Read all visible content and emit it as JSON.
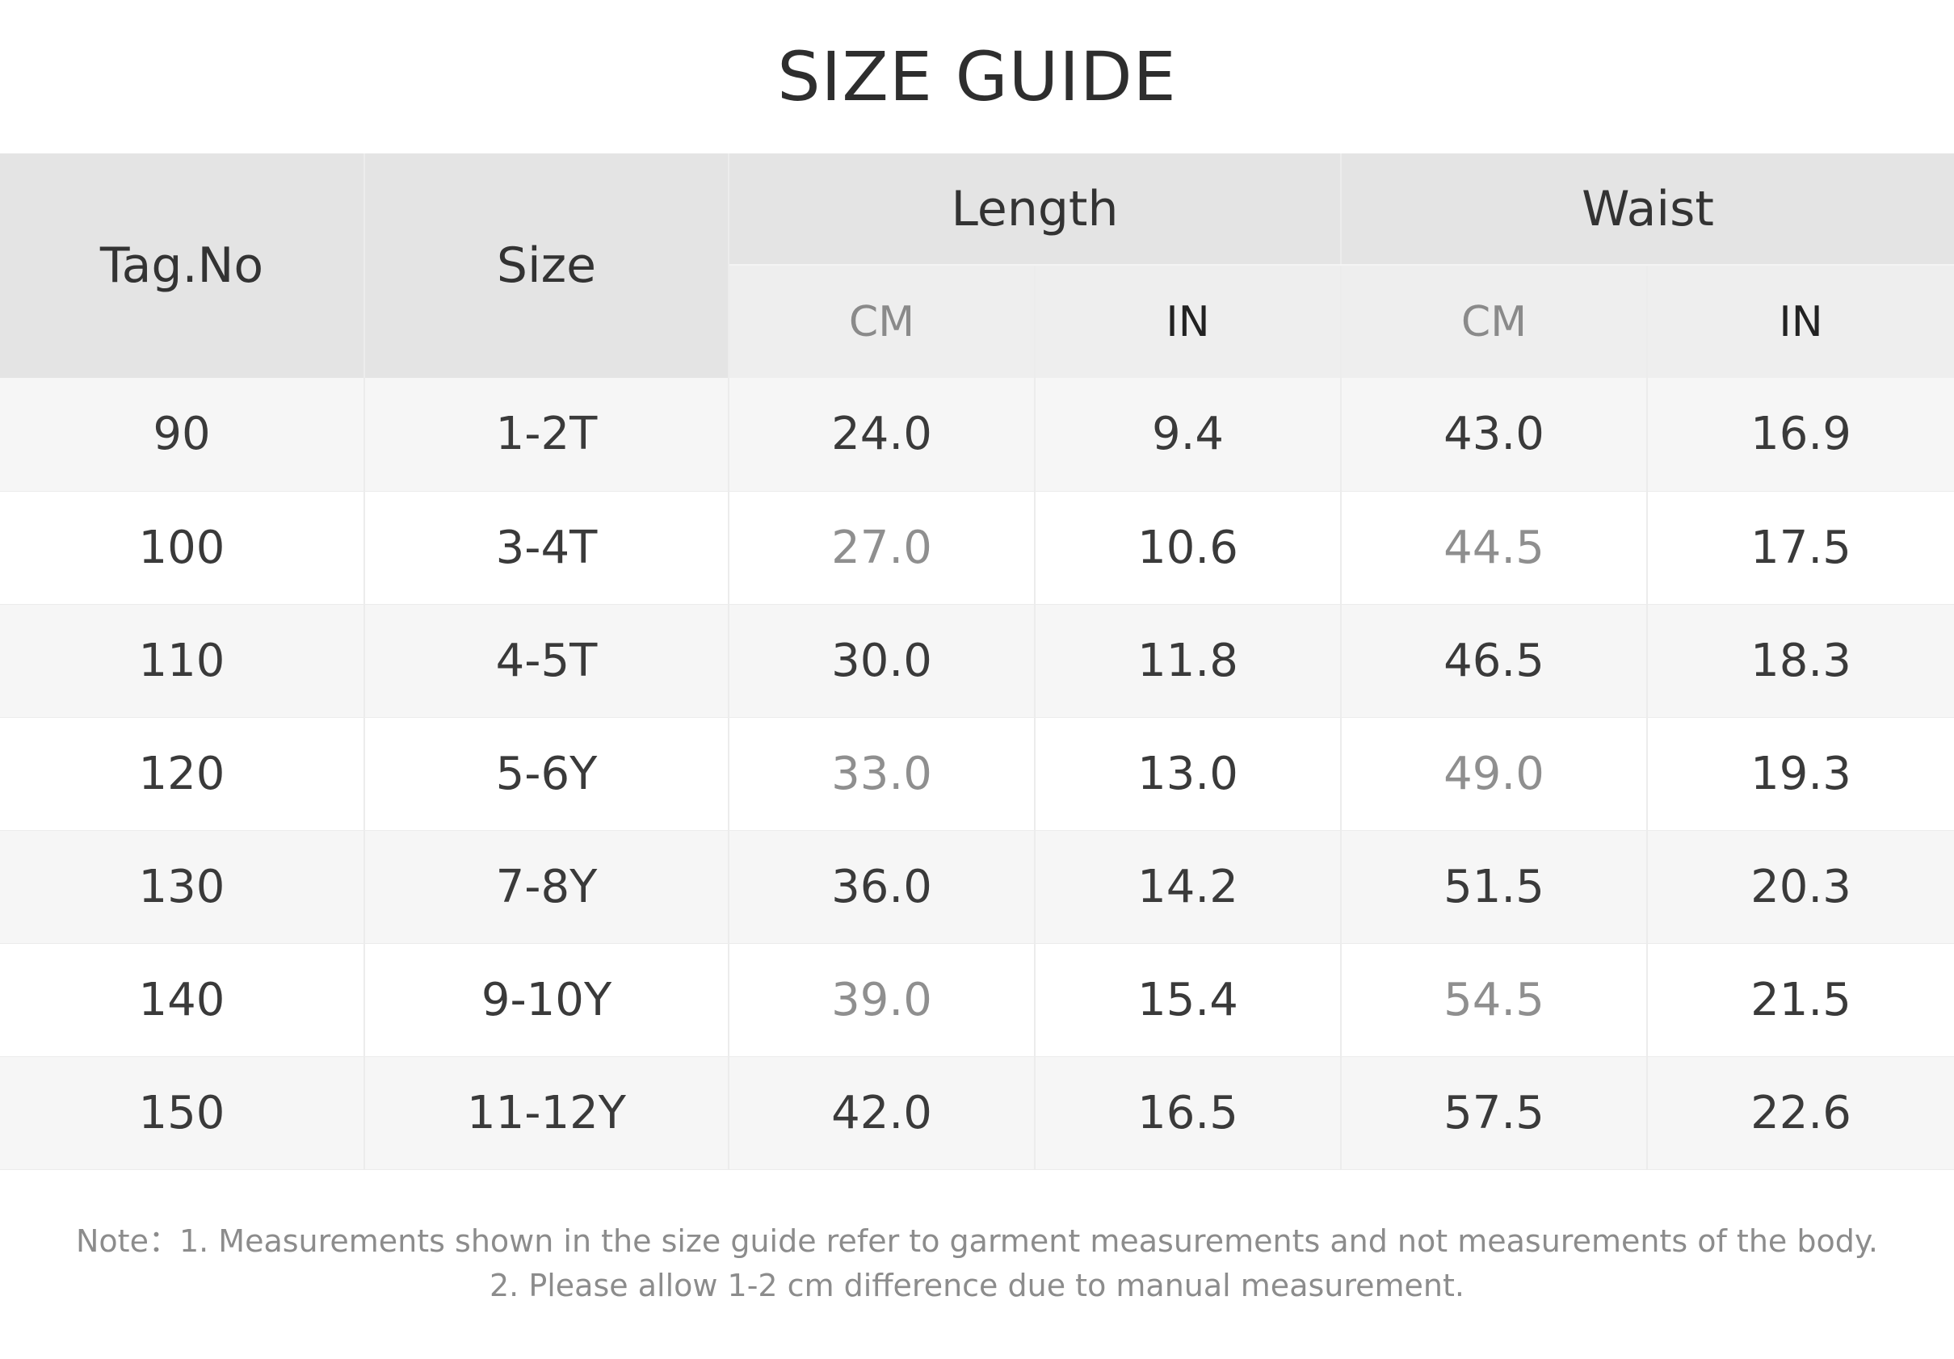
{
  "title": "SIZE GUIDE",
  "table": {
    "headers": {
      "tag_no": "Tag.No",
      "size": "Size",
      "length": "Length",
      "waist": "Waist",
      "length_cm": "CM",
      "length_in": "IN",
      "waist_cm": "CM",
      "waist_in": "IN"
    },
    "rows": [
      {
        "tag": "90",
        "size": "1-2T",
        "length_cm": "24.0",
        "length_in": "9.4",
        "waist_cm": "43.0",
        "waist_in": "16.9"
      },
      {
        "tag": "100",
        "size": "3-4T",
        "length_cm": "27.0",
        "length_in": "10.6",
        "waist_cm": "44.5",
        "waist_in": "17.5"
      },
      {
        "tag": "110",
        "size": "4-5T",
        "length_cm": "30.0",
        "length_in": "11.8",
        "waist_cm": "46.5",
        "waist_in": "18.3"
      },
      {
        "tag": "120",
        "size": "5-6Y",
        "length_cm": "33.0",
        "length_in": "13.0",
        "waist_cm": "49.0",
        "waist_in": "19.3"
      },
      {
        "tag": "130",
        "size": "7-8Y",
        "length_cm": "36.0",
        "length_in": "14.2",
        "waist_cm": "51.5",
        "waist_in": "20.3"
      },
      {
        "tag": "140",
        "size": "9-10Y",
        "length_cm": "39.0",
        "length_in": "15.4",
        "waist_cm": "54.5",
        "waist_in": "21.5"
      },
      {
        "tag": "150",
        "size": "11-12Y",
        "length_cm": "42.0",
        "length_in": "16.5",
        "waist_cm": "57.5",
        "waist_in": "22.6"
      }
    ]
  },
  "notes": {
    "line1": "Note：1. Measurements shown in the size guide refer to garment measurements and not measurements of the body.",
    "line2": "2. Please allow 1-2 cm difference due to manual measurement."
  },
  "colors": {
    "header_bg": "#e4e4e4",
    "subheader_bg": "#eeeeee",
    "shaded_row_bg": "#f6f6f6",
    "muted_text": "#8f8f8f",
    "main_text": "#3a3a3a"
  }
}
